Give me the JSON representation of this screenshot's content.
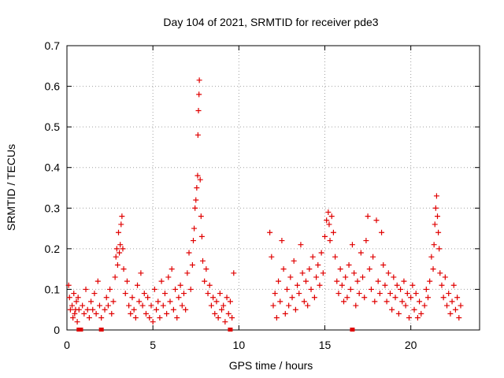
{
  "chart_data": {
    "type": "scatter",
    "title": "Day 104 of 2021, SRMTID for receiver pde3",
    "xlabel": "GPS time / hours",
    "ylabel": "SRMTID / TECUs",
    "xlim": [
      0,
      24
    ],
    "ylim": [
      0,
      0.7
    ],
    "xticks": [
      "0",
      "5",
      "10",
      "15",
      "20"
    ],
    "yticks": [
      "0",
      "0.1",
      "0.2",
      "0.3",
      "0.4",
      "0.5",
      "0.6",
      "0.7"
    ],
    "grid": true,
    "marker": "+",
    "marker_color": "#e00000",
    "series": [
      {
        "name": "SRMTID",
        "points": [
          [
            0.1,
            0.11
          ],
          [
            0.15,
            0.08
          ],
          [
            0.2,
            0.05
          ],
          [
            0.3,
            0.06
          ],
          [
            0.35,
            0.03
          ],
          [
            0.4,
            0.09
          ],
          [
            0.45,
            0.04
          ],
          [
            0.5,
            0.05
          ],
          [
            0.55,
            0.07
          ],
          [
            0.6,
            0.02
          ],
          [
            0.65,
            0.08
          ],
          [
            0.7,
            0.05
          ],
          [
            0.9,
            0.06
          ],
          [
            1.0,
            0.04
          ],
          [
            1.1,
            0.1
          ],
          [
            1.2,
            0.05
          ],
          [
            1.3,
            0.03
          ],
          [
            1.4,
            0.07
          ],
          [
            1.5,
            0.05
          ],
          [
            1.6,
            0.09
          ],
          [
            1.7,
            0.04
          ],
          [
            1.8,
            0.12
          ],
          [
            1.9,
            0.06
          ],
          [
            2.0,
            0.03
          ],
          [
            2.2,
            0.05
          ],
          [
            2.3,
            0.08
          ],
          [
            2.4,
            0.06
          ],
          [
            2.5,
            0.1
          ],
          [
            2.6,
            0.04
          ],
          [
            2.7,
            0.07
          ],
          [
            2.8,
            0.13
          ],
          [
            2.85,
            0.18
          ],
          [
            2.9,
            0.2
          ],
          [
            2.95,
            0.16
          ],
          [
            3.0,
            0.24
          ],
          [
            3.05,
            0.19
          ],
          [
            3.1,
            0.21
          ],
          [
            3.15,
            0.26
          ],
          [
            3.2,
            0.28
          ],
          [
            3.25,
            0.2
          ],
          [
            3.3,
            0.15
          ],
          [
            3.4,
            0.09
          ],
          [
            3.5,
            0.12
          ],
          [
            3.6,
            0.06
          ],
          [
            3.7,
            0.04
          ],
          [
            3.8,
            0.08
          ],
          [
            3.9,
            0.05
          ],
          [
            4.0,
            0.03
          ],
          [
            4.1,
            0.11
          ],
          [
            4.2,
            0.07
          ],
          [
            4.3,
            0.14
          ],
          [
            4.4,
            0.06
          ],
          [
            4.5,
            0.09
          ],
          [
            4.6,
            0.04
          ],
          [
            4.7,
            0.08
          ],
          [
            4.8,
            0.03
          ],
          [
            4.9,
            0.06
          ],
          [
            5.0,
            0.02
          ],
          [
            5.1,
            0.1
          ],
          [
            5.2,
            0.05
          ],
          [
            5.3,
            0.07
          ],
          [
            5.4,
            0.03
          ],
          [
            5.5,
            0.12
          ],
          [
            5.6,
            0.06
          ],
          [
            5.7,
            0.09
          ],
          [
            5.8,
            0.04
          ],
          [
            5.9,
            0.13
          ],
          [
            6.0,
            0.07
          ],
          [
            6.1,
            0.15
          ],
          [
            6.2,
            0.05
          ],
          [
            6.3,
            0.1
          ],
          [
            6.4,
            0.03
          ],
          [
            6.5,
            0.08
          ],
          [
            6.6,
            0.11
          ],
          [
            6.7,
            0.06
          ],
          [
            6.8,
            0.09
          ],
          [
            6.9,
            0.05
          ],
          [
            7.0,
            0.14
          ],
          [
            7.1,
            0.19
          ],
          [
            7.2,
            0.1
          ],
          [
            7.3,
            0.16
          ],
          [
            7.35,
            0.22
          ],
          [
            7.4,
            0.25
          ],
          [
            7.45,
            0.3
          ],
          [
            7.5,
            0.32
          ],
          [
            7.55,
            0.35
          ],
          [
            7.6,
            0.38
          ],
          [
            7.62,
            0.48
          ],
          [
            7.65,
            0.54
          ],
          [
            7.68,
            0.58
          ],
          [
            7.7,
            0.615
          ],
          [
            7.75,
            0.37
          ],
          [
            7.8,
            0.28
          ],
          [
            7.85,
            0.23
          ],
          [
            7.9,
            0.17
          ],
          [
            8.0,
            0.12
          ],
          [
            8.1,
            0.15
          ],
          [
            8.2,
            0.09
          ],
          [
            8.3,
            0.11
          ],
          [
            8.4,
            0.06
          ],
          [
            8.5,
            0.08
          ],
          [
            8.6,
            0.04
          ],
          [
            8.7,
            0.07
          ],
          [
            8.8,
            0.03
          ],
          [
            8.9,
            0.09
          ],
          [
            9.0,
            0.05
          ],
          [
            9.1,
            0.06
          ],
          [
            9.2,
            0.02
          ],
          [
            9.3,
            0.08
          ],
          [
            9.4,
            0.04
          ],
          [
            9.5,
            0.07
          ],
          [
            9.6,
            0.03
          ],
          [
            9.7,
            0.14
          ],
          [
            11.8,
            0.24
          ],
          [
            11.9,
            0.18
          ],
          [
            12.0,
            0.06
          ],
          [
            12.1,
            0.09
          ],
          [
            12.2,
            0.03
          ],
          [
            12.3,
            0.12
          ],
          [
            12.4,
            0.07
          ],
          [
            12.5,
            0.22
          ],
          [
            12.6,
            0.15
          ],
          [
            12.7,
            0.04
          ],
          [
            12.8,
            0.1
          ],
          [
            12.9,
            0.06
          ],
          [
            13.0,
            0.13
          ],
          [
            13.1,
            0.08
          ],
          [
            13.2,
            0.17
          ],
          [
            13.3,
            0.05
          ],
          [
            13.4,
            0.11
          ],
          [
            13.5,
            0.09
          ],
          [
            13.6,
            0.21
          ],
          [
            13.7,
            0.14
          ],
          [
            13.8,
            0.07
          ],
          [
            13.9,
            0.12
          ],
          [
            14.0,
            0.06
          ],
          [
            14.1,
            0.15
          ],
          [
            14.2,
            0.1
          ],
          [
            14.3,
            0.18
          ],
          [
            14.4,
            0.08
          ],
          [
            14.5,
            0.13
          ],
          [
            14.6,
            0.16
          ],
          [
            14.7,
            0.11
          ],
          [
            14.8,
            0.19
          ],
          [
            14.9,
            0.14
          ],
          [
            15.0,
            0.23
          ],
          [
            15.1,
            0.27
          ],
          [
            15.2,
            0.29
          ],
          [
            15.25,
            0.26
          ],
          [
            15.3,
            0.22
          ],
          [
            15.4,
            0.28
          ],
          [
            15.5,
            0.24
          ],
          [
            15.6,
            0.18
          ],
          [
            15.7,
            0.12
          ],
          [
            15.8,
            0.09
          ],
          [
            15.9,
            0.15
          ],
          [
            16.0,
            0.11
          ],
          [
            16.1,
            0.07
          ],
          [
            16.2,
            0.13
          ],
          [
            16.3,
            0.08
          ],
          [
            16.4,
            0.16
          ],
          [
            16.5,
            0.1
          ],
          [
            16.6,
            0.21
          ],
          [
            16.7,
            0.14
          ],
          [
            16.8,
            0.06
          ],
          [
            16.9,
            0.12
          ],
          [
            17.0,
            0.09
          ],
          [
            17.1,
            0.19
          ],
          [
            17.2,
            0.13
          ],
          [
            17.3,
            0.08
          ],
          [
            17.4,
            0.22
          ],
          [
            17.5,
            0.28
          ],
          [
            17.6,
            0.15
          ],
          [
            17.7,
            0.1
          ],
          [
            17.8,
            0.18
          ],
          [
            17.9,
            0.07
          ],
          [
            18.0,
            0.27
          ],
          [
            18.1,
            0.12
          ],
          [
            18.2,
            0.09
          ],
          [
            18.3,
            0.24
          ],
          [
            18.4,
            0.16
          ],
          [
            18.5,
            0.11
          ],
          [
            18.6,
            0.07
          ],
          [
            18.7,
            0.14
          ],
          [
            18.8,
            0.09
          ],
          [
            18.9,
            0.05
          ],
          [
            19.0,
            0.13
          ],
          [
            19.1,
            0.08
          ],
          [
            19.2,
            0.11
          ],
          [
            19.3,
            0.04
          ],
          [
            19.4,
            0.1
          ],
          [
            19.5,
            0.07
          ],
          [
            19.6,
            0.12
          ],
          [
            19.7,
            0.06
          ],
          [
            19.8,
            0.09
          ],
          [
            19.9,
            0.03
          ],
          [
            20.0,
            0.08
          ],
          [
            20.1,
            0.11
          ],
          [
            20.2,
            0.05
          ],
          [
            20.3,
            0.09
          ],
          [
            20.4,
            0.03
          ],
          [
            20.5,
            0.07
          ],
          [
            20.6,
            0.04
          ],
          [
            20.8,
            0.06
          ],
          [
            20.9,
            0.1
          ],
          [
            21.0,
            0.08
          ],
          [
            21.1,
            0.12
          ],
          [
            21.2,
            0.18
          ],
          [
            21.3,
            0.15
          ],
          [
            21.35,
            0.21
          ],
          [
            21.4,
            0.26
          ],
          [
            21.45,
            0.3
          ],
          [
            21.5,
            0.33
          ],
          [
            21.55,
            0.28
          ],
          [
            21.6,
            0.24
          ],
          [
            21.65,
            0.2
          ],
          [
            21.7,
            0.14
          ],
          [
            21.8,
            0.11
          ],
          [
            21.9,
            0.08
          ],
          [
            22.0,
            0.13
          ],
          [
            22.1,
            0.06
          ],
          [
            22.2,
            0.09
          ],
          [
            22.3,
            0.04
          ],
          [
            22.4,
            0.07
          ],
          [
            22.5,
            0.11
          ],
          [
            22.6,
            0.05
          ],
          [
            22.7,
            0.08
          ],
          [
            22.8,
            0.03
          ],
          [
            22.9,
            0.06
          ]
        ]
      }
    ],
    "gap_markers_x": [
      0.7,
      0.75,
      0.8,
      2.0,
      9.5,
      16.6
    ]
  }
}
